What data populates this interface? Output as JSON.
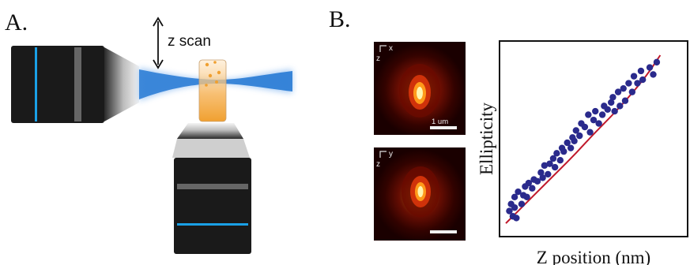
{
  "panel_a": {
    "label": "A.",
    "scan_label": "z scan"
  },
  "panel_b": {
    "label": "B.",
    "psf_top": {
      "axis_horizontal": "x",
      "axis_vertical": "z",
      "scalebar_label": "1 um"
    },
    "psf_bottom": {
      "axis_horizontal": "y",
      "axis_vertical": "z",
      "scalebar_label": ""
    }
  },
  "colors": {
    "objective_body": "#1a1a1a",
    "stripe_blue": "#1aa0e6",
    "stripe_gray": "#666666",
    "beam": "#2f7fd6",
    "fit_line": "#c0192b",
    "points": "#2a2a8c",
    "sample_orange": "#f0a030"
  },
  "chart_data": {
    "type": "scatter",
    "xlabel": "Z position (nm)",
    "ylabel": "Ellipticity",
    "title": "",
    "grid": false,
    "xlim": [
      0,
      100
    ],
    "ylim": [
      0,
      100
    ],
    "points": [
      [
        2,
        11
      ],
      [
        3,
        15
      ],
      [
        4,
        8
      ],
      [
        5,
        13
      ],
      [
        5,
        19
      ],
      [
        6,
        7
      ],
      [
        7,
        22
      ],
      [
        9,
        15
      ],
      [
        10,
        20
      ],
      [
        11,
        25
      ],
      [
        12,
        19
      ],
      [
        13,
        27
      ],
      [
        15,
        24
      ],
      [
        16,
        29
      ],
      [
        18,
        28
      ],
      [
        20,
        33
      ],
      [
        21,
        30
      ],
      [
        22,
        37
      ],
      [
        24,
        32
      ],
      [
        25,
        38
      ],
      [
        27,
        41
      ],
      [
        28,
        36
      ],
      [
        29,
        44
      ],
      [
        31,
        40
      ],
      [
        32,
        47
      ],
      [
        33,
        45
      ],
      [
        35,
        50
      ],
      [
        37,
        47
      ],
      [
        38,
        53
      ],
      [
        39,
        51
      ],
      [
        40,
        57
      ],
      [
        42,
        54
      ],
      [
        43,
        61
      ],
      [
        45,
        59
      ],
      [
        47,
        66
      ],
      [
        48,
        56
      ],
      [
        50,
        63
      ],
      [
        51,
        68
      ],
      [
        53,
        61
      ],
      [
        55,
        66
      ],
      [
        56,
        71
      ],
      [
        58,
        69
      ],
      [
        60,
        73
      ],
      [
        61,
        76
      ],
      [
        62,
        68
      ],
      [
        64,
        79
      ],
      [
        65,
        71
      ],
      [
        67,
        81
      ],
      [
        68,
        74
      ],
      [
        70,
        84
      ],
      [
        72,
        79
      ],
      [
        73,
        88
      ],
      [
        75,
        84
      ],
      [
        77,
        91
      ],
      [
        78,
        86
      ],
      [
        82,
        93
      ],
      [
        84,
        89
      ],
      [
        86,
        96
      ]
    ],
    "fit_line": [
      [
        0,
        4
      ],
      [
        10,
        14
      ],
      [
        20,
        24
      ],
      [
        30,
        34
      ],
      [
        40,
        44
      ],
      [
        50,
        55
      ],
      [
        60,
        65
      ],
      [
        70,
        76
      ],
      [
        80,
        88
      ],
      [
        88,
        100
      ]
    ]
  }
}
